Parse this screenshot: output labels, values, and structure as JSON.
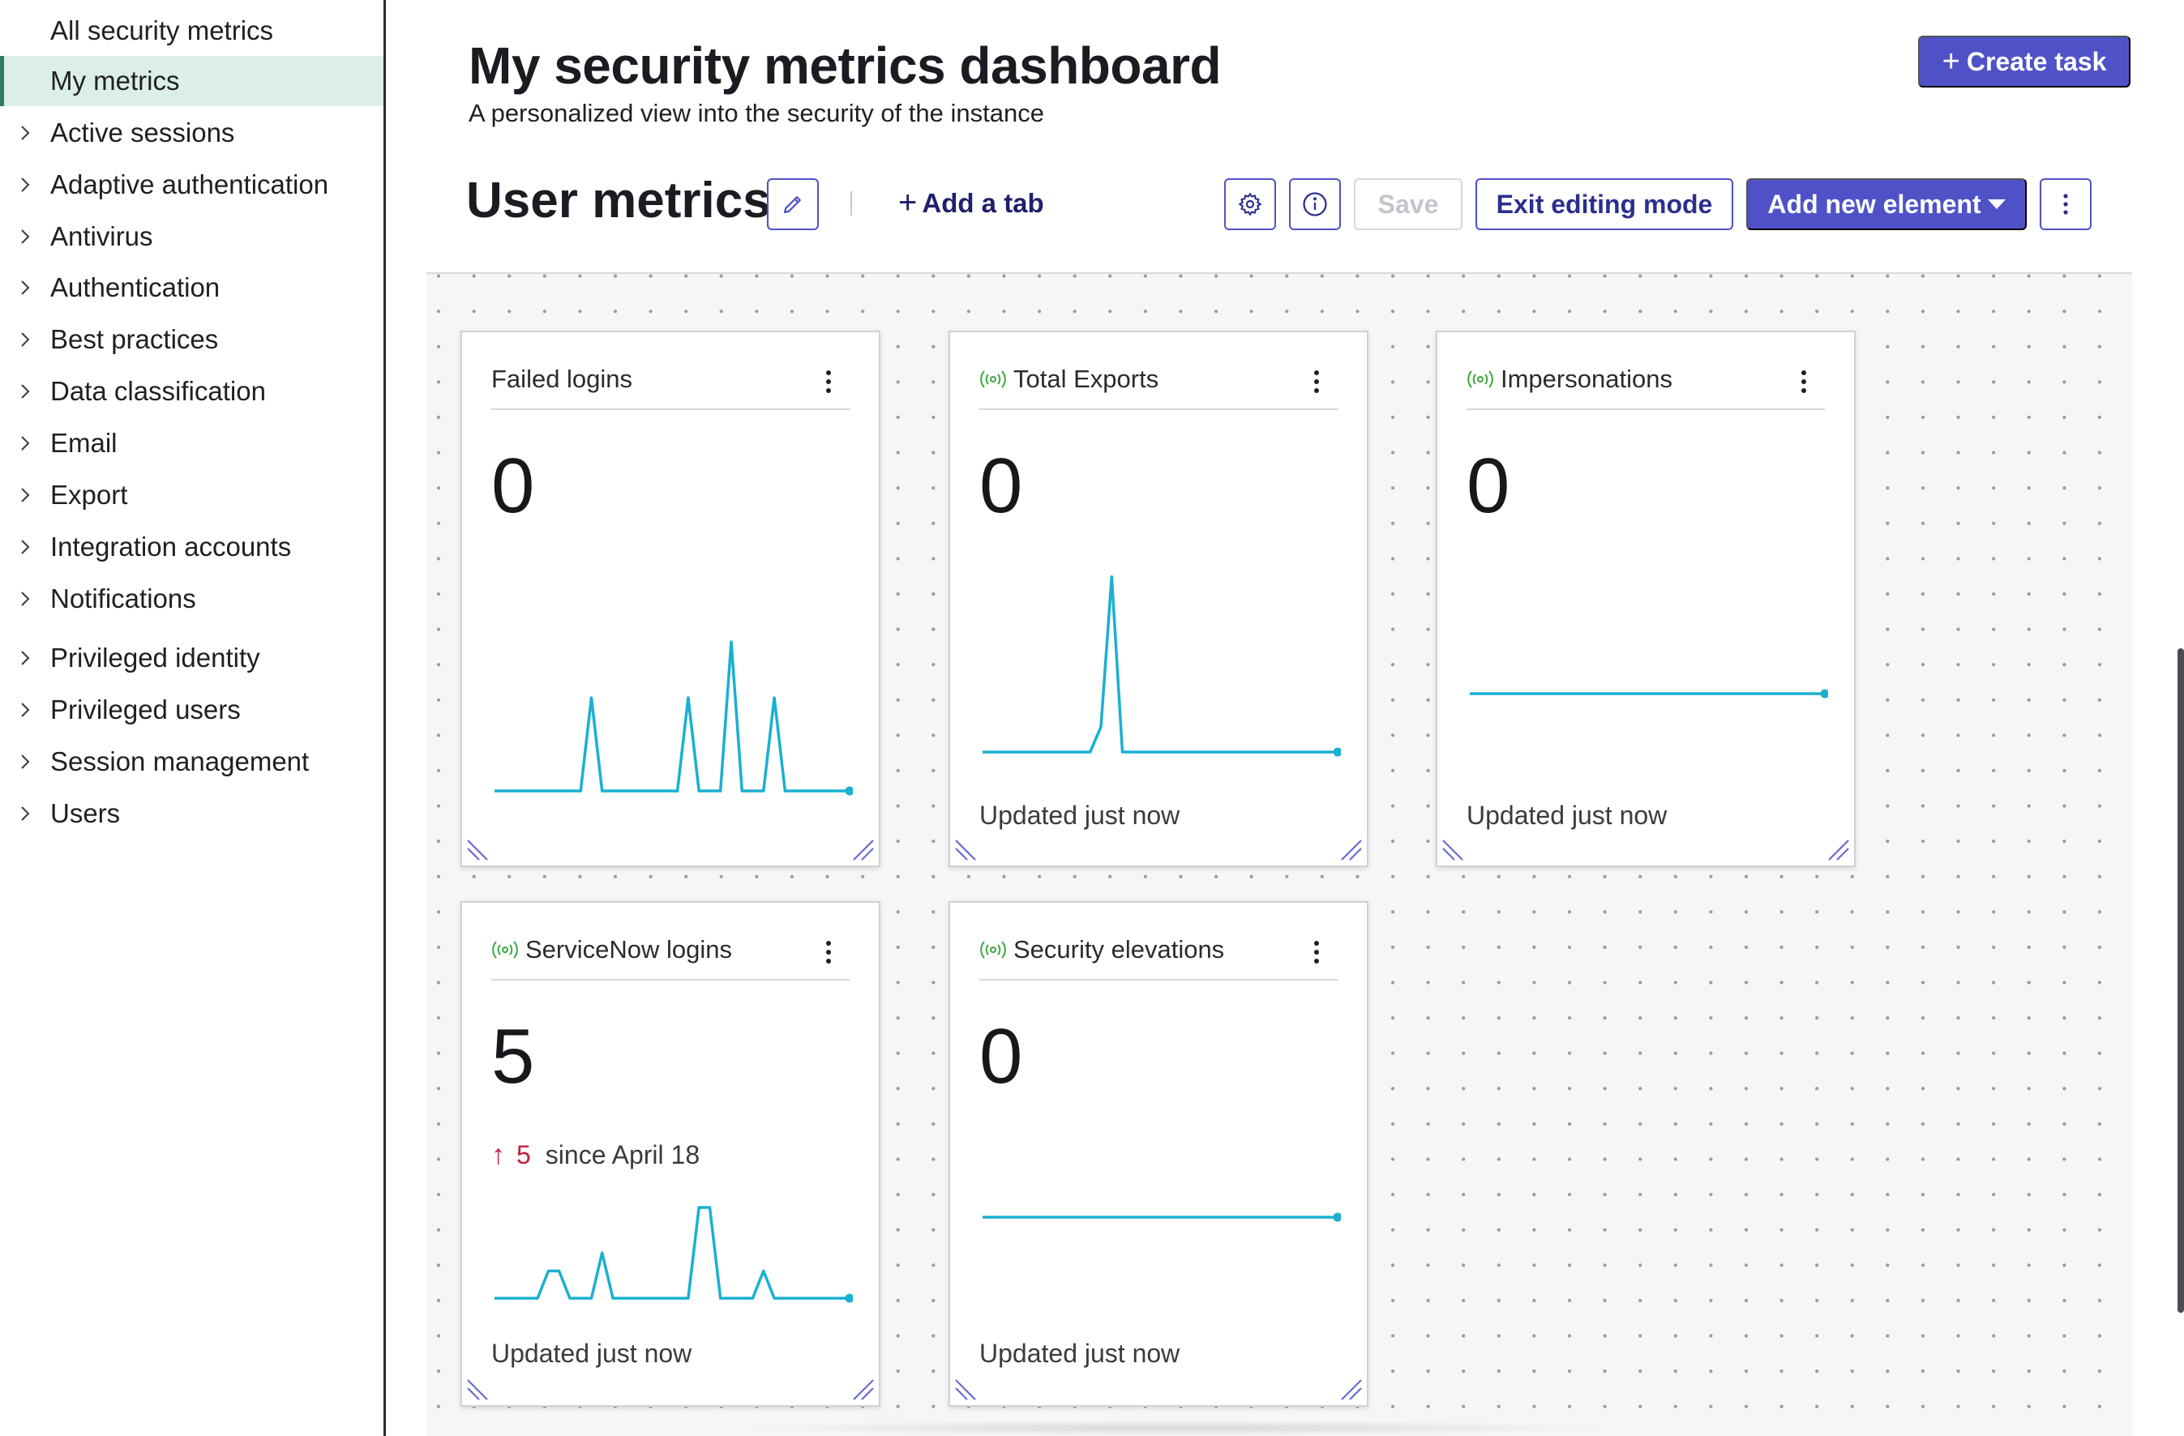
{
  "sidebar": {
    "items": [
      {
        "label": "All security metrics",
        "expandable": false,
        "active": false
      },
      {
        "label": "My metrics",
        "expandable": false,
        "active": true
      },
      {
        "label": "Active sessions",
        "expandable": true
      },
      {
        "label": "Adaptive authentication",
        "expandable": true
      },
      {
        "label": "Antivirus",
        "expandable": true
      },
      {
        "label": "Authentication",
        "expandable": true
      },
      {
        "label": "Best practices",
        "expandable": true
      },
      {
        "label": "Data classification",
        "expandable": true
      },
      {
        "label": "Email",
        "expandable": true
      },
      {
        "label": "Export",
        "expandable": true
      },
      {
        "label": "Integration accounts",
        "expandable": true
      },
      {
        "label": "Notifications",
        "expandable": true
      },
      {
        "label": "Privileged identity",
        "expandable": true
      },
      {
        "label": "Privileged users",
        "expandable": true
      },
      {
        "label": "Session management",
        "expandable": true
      },
      {
        "label": "Users",
        "expandable": true
      }
    ]
  },
  "header": {
    "title": "My security metrics dashboard",
    "subtitle": "A personalized view into the security of the instance",
    "create_task_label": "Create task"
  },
  "toolbar": {
    "tab_title": "User metrics",
    "add_tab_label": "Add a tab",
    "save_label": "Save",
    "exit_editing_label": "Exit editing mode",
    "add_element_label": "Add new element"
  },
  "colors": {
    "accent": "#4f52c7",
    "sparkline": "#1ab0d0",
    "live_indicator": "#3aa63a",
    "delta_up": "#c0203a",
    "active_nav_bg": "#dbeee8"
  },
  "cards": [
    {
      "title": "Failed logins",
      "live": false,
      "value": "0",
      "updated": "",
      "sparkline": [
        0,
        0,
        0,
        0,
        0,
        0,
        0,
        0,
        0,
        1,
        0,
        0,
        0,
        0,
        0,
        0,
        0,
        0,
        1,
        0,
        0,
        0,
        1.6,
        0,
        0,
        0,
        1,
        0,
        0,
        0,
        0,
        0,
        0,
        0
      ]
    },
    {
      "title": "Total Exports",
      "live": true,
      "value": "0",
      "updated": "Updated just now",
      "sparkline": [
        0,
        0,
        0,
        0,
        0,
        0,
        0,
        0,
        0,
        0,
        0,
        0.3,
        2.1,
        0,
        0,
        0,
        0,
        0,
        0,
        0,
        0,
        0,
        0,
        0,
        0,
        0,
        0,
        0,
        0,
        0,
        0,
        0,
        0,
        0
      ]
    },
    {
      "title": "Impersonations",
      "live": true,
      "value": "0",
      "updated": "Updated just now",
      "sparkline": [
        0,
        0,
        0,
        0,
        0,
        0,
        0,
        0,
        0,
        0,
        0,
        0,
        0,
        0,
        0,
        0,
        0,
        0,
        0,
        0,
        0,
        0,
        0,
        0,
        0,
        0,
        0,
        0,
        0,
        0,
        0,
        0,
        0,
        0
      ]
    },
    {
      "title": "ServiceNow logins",
      "live": true,
      "value": "5",
      "delta": {
        "value": "5",
        "label": "since April 18"
      },
      "updated": "Updated just now",
      "sparkline": [
        0,
        0,
        0,
        0,
        0,
        0.3,
        0.3,
        0,
        0,
        0,
        0.5,
        0,
        0,
        0,
        0,
        0,
        0,
        0,
        0,
        1,
        1,
        0,
        0,
        0,
        0,
        0.3,
        0,
        0,
        0,
        0,
        0,
        0,
        0,
        0
      ]
    },
    {
      "title": "Security elevations",
      "live": true,
      "value": "0",
      "updated": "Updated just now",
      "sparkline": [
        0,
        0,
        0,
        0,
        0,
        0,
        0,
        0,
        0,
        0,
        0,
        0,
        0,
        0,
        0,
        0,
        0,
        0,
        0,
        0,
        0,
        0,
        0,
        0,
        0,
        0,
        0,
        0,
        0,
        0,
        0,
        0,
        0,
        0
      ]
    }
  ]
}
